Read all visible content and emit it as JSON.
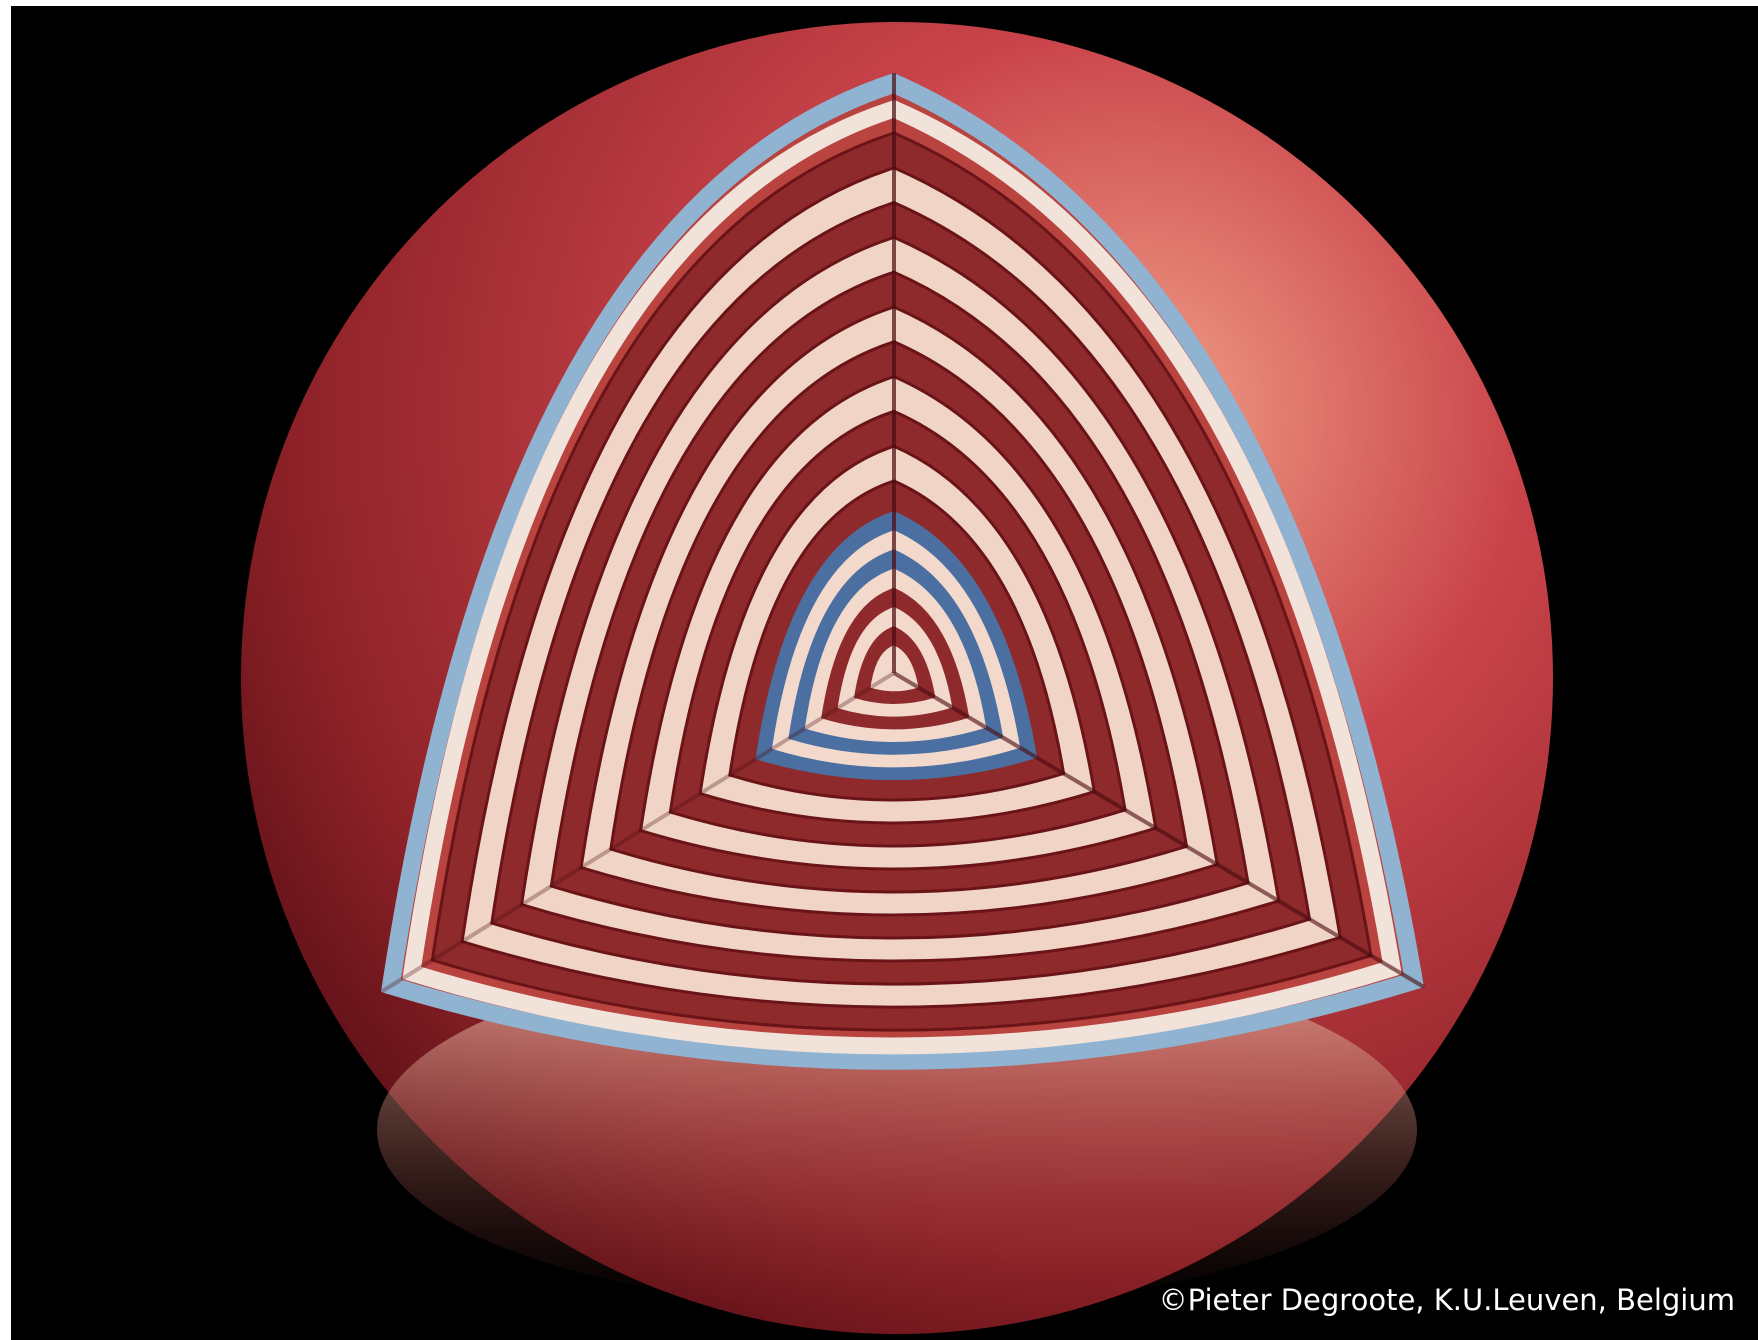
{
  "credit": "©Pieter Degroote, K.U.Leuven, Belgium"
}
